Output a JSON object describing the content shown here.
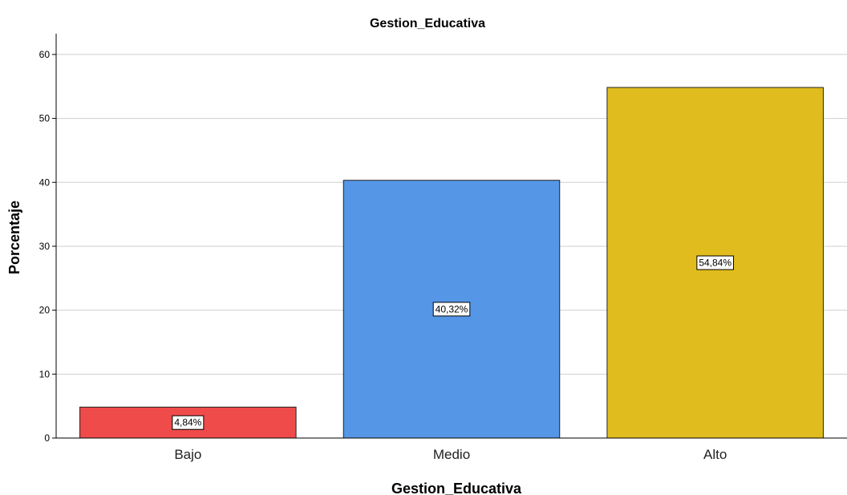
{
  "chart_data": {
    "type": "bar",
    "title": "Gestion_Educativa",
    "xlabel": "Gestion_Educativa",
    "ylabel": "Porcentaje",
    "categories": [
      "Bajo",
      "Medio",
      "Alto"
    ],
    "values": [
      4.84,
      40.32,
      54.84
    ],
    "data_labels": [
      "4,84%",
      "40,32%",
      "54,84%"
    ],
    "colors": [
      "#EF4B4B",
      "#5596E6",
      "#E0BC1E"
    ],
    "ylim": [
      0,
      63
    ],
    "yticks": [
      0,
      10,
      20,
      30,
      40,
      50,
      60
    ],
    "grid": true,
    "grid_axis": "y",
    "legend": "none"
  }
}
